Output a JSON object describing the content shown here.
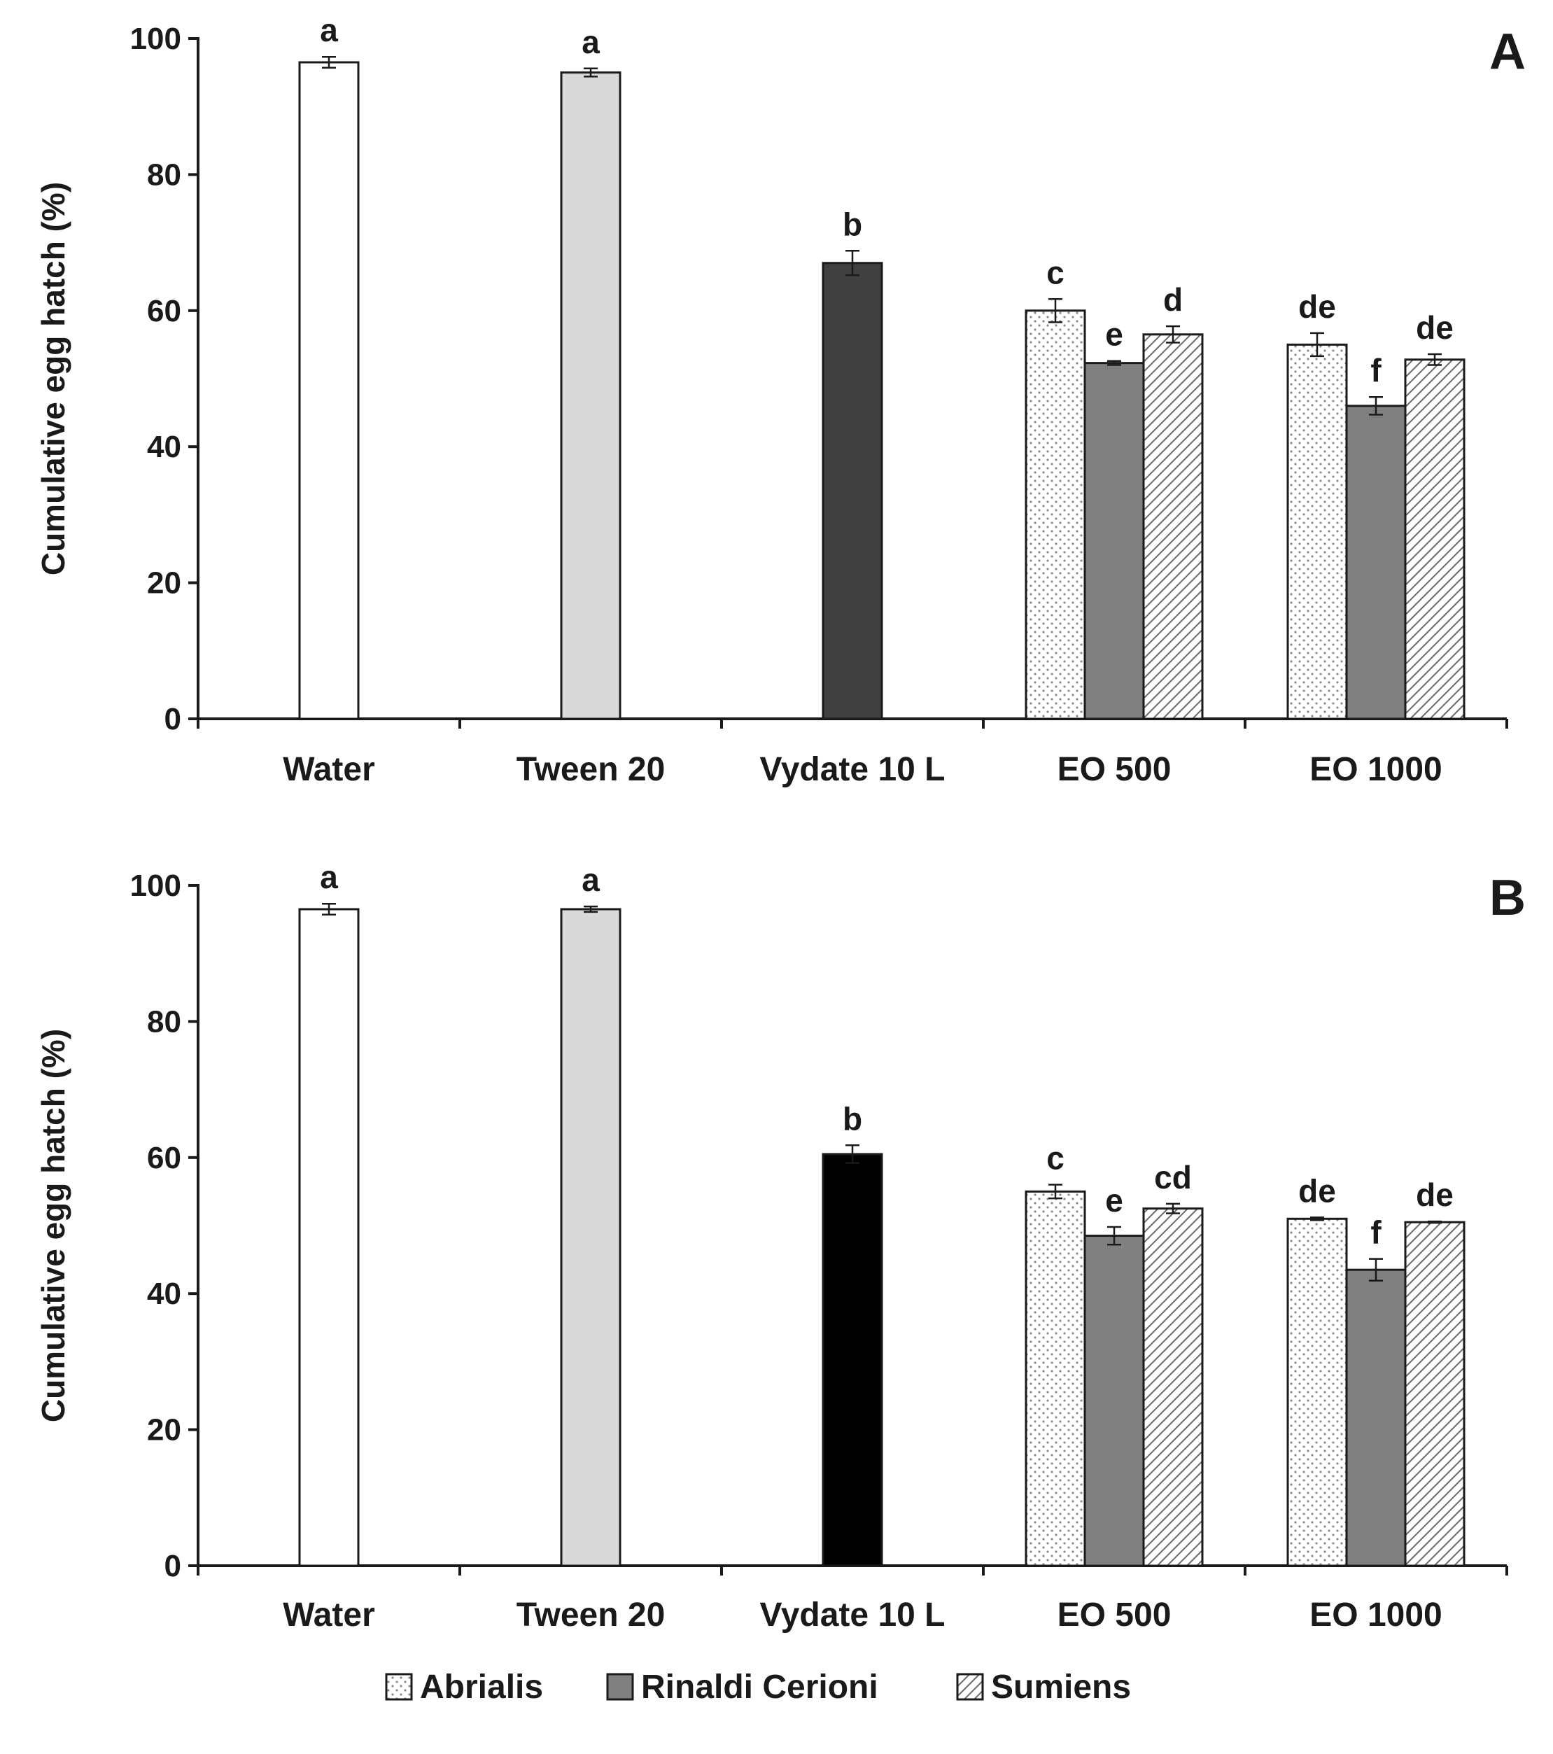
{
  "chart_data": [
    {
      "type": "bar",
      "panel_label": "A",
      "title": "",
      "xlabel": "",
      "ylabel": "Cumulative egg hatch (%)",
      "ylim": [
        0,
        100
      ],
      "yticks": [
        "0",
        "20",
        "40",
        "60",
        "80",
        "100"
      ],
      "grid": false,
      "categories": [
        "Water",
        "Tween 20",
        "Vydate 10 L",
        "EO 500",
        "EO 1000"
      ],
      "groups": [
        {
          "category": "Water",
          "bars": [
            {
              "series": "Water",
              "value": 96.5,
              "error": 0.8,
              "label": "a"
            }
          ]
        },
        {
          "category": "Tween 20",
          "bars": [
            {
              "series": "Tween 20",
              "value": 95.0,
              "error": 0.6,
              "label": "a"
            }
          ]
        },
        {
          "category": "Vydate 10 L",
          "bars": [
            {
              "series": "Vydate 10 L",
              "value": 67.0,
              "error": 1.8,
              "label": "b"
            }
          ]
        },
        {
          "category": "EO 500",
          "bars": [
            {
              "series": "Abrialis",
              "value": 60.0,
              "error": 1.7,
              "label": "c"
            },
            {
              "series": "Rinaldi Cerioni",
              "value": 52.3,
              "error": 0.3,
              "label": "e"
            },
            {
              "series": "Sumiens",
              "value": 56.5,
              "error": 1.2,
              "label": "d"
            }
          ]
        },
        {
          "category": "EO 1000",
          "bars": [
            {
              "series": "Abrialis",
              "value": 55.0,
              "error": 1.7,
              "label": "de"
            },
            {
              "series": "Rinaldi Cerioni",
              "value": 46.0,
              "error": 1.3,
              "label": "f"
            },
            {
              "series": "Sumiens",
              "value": 52.8,
              "error": 0.8,
              "label": "de"
            }
          ]
        }
      ]
    },
    {
      "type": "bar",
      "panel_label": "B",
      "title": "",
      "xlabel": "",
      "ylabel": "Cumulative egg hatch (%)",
      "ylim": [
        0,
        100
      ],
      "yticks": [
        "0",
        "20",
        "40",
        "60",
        "80",
        "100"
      ],
      "grid": false,
      "categories": [
        "Water",
        "Tween 20",
        "Vydate 10 L",
        "EO 500",
        "EO 1000"
      ],
      "groups": [
        {
          "category": "Water",
          "bars": [
            {
              "series": "Water",
              "value": 96.5,
              "error": 0.8,
              "label": "a"
            }
          ]
        },
        {
          "category": "Tween 20",
          "bars": [
            {
              "series": "Tween 20",
              "value": 96.5,
              "error": 0.4,
              "label": "a"
            }
          ]
        },
        {
          "category": "Vydate 10 L",
          "bars": [
            {
              "series": "Vydate 10 L",
              "value": 60.5,
              "error": 1.3,
              "label": "b"
            }
          ]
        },
        {
          "category": "EO 500",
          "bars": [
            {
              "series": "Abrialis",
              "value": 55.0,
              "error": 1.0,
              "label": "c"
            },
            {
              "series": "Rinaldi Cerioni",
              "value": 48.5,
              "error": 1.3,
              "label": "e"
            },
            {
              "series": "Sumiens",
              "value": 52.5,
              "error": 0.7,
              "label": "cd"
            }
          ]
        },
        {
          "category": "EO 1000",
          "bars": [
            {
              "series": "Abrialis",
              "value": 51.0,
              "error": 0.2,
              "label": "de"
            },
            {
              "series": "Rinaldi Cerioni",
              "value": 43.5,
              "error": 1.6,
              "label": "f"
            },
            {
              "series": "Sumiens",
              "value": 50.5,
              "error": 0.1,
              "label": "de"
            }
          ]
        }
      ]
    }
  ],
  "styles": {
    "Water": {
      "fill": "#ffffff",
      "pattern": "none"
    },
    "Tween 20": {
      "fill": "#d9d9d9",
      "pattern": "none"
    },
    "Vydate 10 L": {
      "fill": "#404040",
      "pattern": "none"
    },
    "Vydate 10 L_B": {
      "fill": "#000000",
      "pattern": "none"
    },
    "Abrialis": {
      "fill": "#ffffff",
      "pattern": "dots"
    },
    "Rinaldi Cerioni": {
      "fill": "#808080",
      "pattern": "none"
    },
    "Sumiens": {
      "fill": "#ffffff",
      "pattern": "hatch"
    }
  },
  "legend": {
    "position": "bottom-center",
    "items": [
      {
        "label": "Abrialis",
        "pattern": "dots",
        "fill": "#ffffff"
      },
      {
        "label": "Rinaldi Cerioni",
        "pattern": "none",
        "fill": "#808080"
      },
      {
        "label": "Sumiens",
        "pattern": "hatch",
        "fill": "#ffffff"
      }
    ]
  }
}
